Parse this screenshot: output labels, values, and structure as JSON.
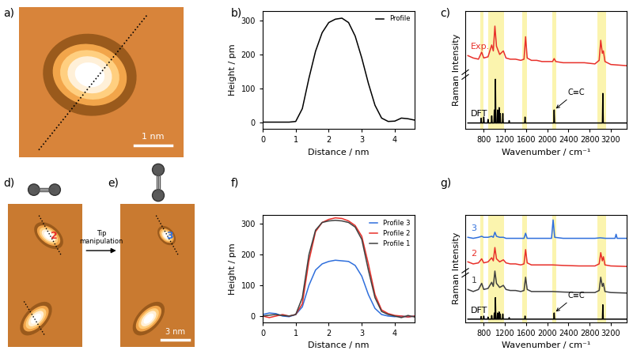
{
  "images": [
    {
      "panel_label": "a)",
      "scale_bar": "1 nm"
    },
    {
      "panel_label": "d)",
      "label": "2",
      "color": "#e8302a"
    },
    {
      "panel_label": "e)",
      "label": "3",
      "color": "#2f6fdc",
      "scale_bar": "3 nm"
    }
  ],
  "arrow_text": "Tip\nmanipulation",
  "chart_data": [
    {
      "type": "line",
      "panel_label": "b)",
      "xlabel": "Distance / nm",
      "ylabel": "Height / pm",
      "xlim": [
        0,
        4.6
      ],
      "xticks": [
        0,
        1,
        2,
        3,
        4
      ],
      "ylim": [
        -20,
        330
      ],
      "yticks": [
        0,
        100,
        200,
        300
      ],
      "legend": "upper right",
      "series": [
        {
          "name": "Profile",
          "color": "#000000",
          "x": [
            0,
            0.2,
            0.4,
            0.6,
            0.8,
            1.0,
            1.2,
            1.4,
            1.6,
            1.8,
            2.0,
            2.2,
            2.4,
            2.6,
            2.8,
            3.0,
            3.2,
            3.4,
            3.6,
            3.8,
            4.0,
            4.2,
            4.4,
            4.6
          ],
          "values": [
            0,
            0,
            0,
            0,
            0,
            2,
            40,
            130,
            210,
            265,
            295,
            305,
            308,
            295,
            255,
            190,
            115,
            50,
            12,
            2,
            3,
            12,
            10,
            6
          ]
        }
      ]
    },
    {
      "type": "line",
      "panel_label": "c)",
      "xlabel": "Wavenumber / cm⁻¹",
      "ylabel": "Raman Intensity",
      "xlim": [
        450,
        3500
      ],
      "xticks": [
        800,
        1200,
        1600,
        2000,
        2400,
        2800,
        3200
      ],
      "ylim": [
        0,
        10
      ],
      "tick_labels": "x",
      "highlight_ranges": [
        [
          730,
          800
        ],
        [
          890,
          1180
        ],
        [
          1530,
          1610
        ],
        [
          2090,
          2170
        ],
        [
          2950,
          3110
        ]
      ],
      "annotations": [
        {
          "text": "C≡C",
          "x": 2130,
          "y": 1.6
        }
      ],
      "series": [
        {
          "name": "Exp.",
          "color": "#e8302a",
          "x": [
            500,
            600,
            700,
            760,
            800,
            880,
            950,
            980,
            1010,
            1040,
            1100,
            1170,
            1220,
            1300,
            1400,
            1500,
            1560,
            1590,
            1620,
            1700,
            1800,
            1900,
            2000,
            2100,
            2130,
            2160,
            2300,
            2500,
            2700,
            2900,
            2980,
            3010,
            3040,
            3060,
            3090,
            3200,
            3350,
            3500
          ],
          "values": [
            6.2,
            6.0,
            5.9,
            6.5,
            6.0,
            6.1,
            7.1,
            6.6,
            8.7,
            7.0,
            6.3,
            6.6,
            6.0,
            5.9,
            5.9,
            5.8,
            5.9,
            7.8,
            6.0,
            5.8,
            5.8,
            5.7,
            5.7,
            5.7,
            5.95,
            5.7,
            5.6,
            5.6,
            5.6,
            5.5,
            5.8,
            7.5,
            6.4,
            6.6,
            5.7,
            5.45,
            5.4,
            5.35
          ]
        },
        {
          "name": "DFT",
          "color": "#000000",
          "x": [
            500,
            742,
            750,
            758,
            792,
            800,
            808,
            872,
            880,
            888,
            942,
            950,
            958,
            992,
            1000,
            1008,
            1012,
            1020,
            1028,
            1052,
            1060,
            1068,
            1082,
            1090,
            1098,
            1102,
            1110,
            1118,
            1152,
            1160,
            1168,
            1272,
            1280,
            1288,
            1572,
            1580,
            1588,
            2122,
            2130,
            2138,
            3042,
            3050,
            3058,
            3500
          ],
          "values": [
            0.5,
            0.5,
            0.9,
            0.5,
            0.5,
            1.0,
            0.5,
            0.5,
            0.8,
            0.5,
            0.5,
            1.1,
            0.5,
            0.5,
            1.6,
            0.5,
            0.5,
            4.2,
            0.5,
            0.5,
            1.6,
            0.5,
            0.5,
            1.8,
            0.5,
            0.5,
            1.3,
            0.5,
            0.5,
            1.3,
            0.5,
            0.5,
            0.7,
            0.5,
            0.5,
            1.0,
            0.5,
            0.5,
            1.6,
            0.5,
            0.5,
            3.0,
            0.5,
            0.5
          ]
        }
      ]
    },
    {
      "type": "line",
      "panel_label": "f)",
      "xlabel": "Distance / nm",
      "ylabel": "Height / pm",
      "xlim": [
        0,
        4.6
      ],
      "xticks": [
        0,
        1,
        2,
        3,
        4
      ],
      "ylim": [
        -20,
        330
      ],
      "yticks": [
        0,
        100,
        200,
        300
      ],
      "legend": "upper right",
      "series": [
        {
          "name": "Profile 3",
          "color": "#2f6fdc",
          "x": [
            0,
            0.2,
            0.4,
            0.6,
            0.8,
            1.0,
            1.2,
            1.4,
            1.6,
            1.8,
            2.0,
            2.2,
            2.4,
            2.6,
            2.8,
            3.0,
            3.2,
            3.4,
            3.6,
            3.8,
            4.0,
            4.2,
            4.4,
            4.6
          ],
          "values": [
            5,
            10,
            8,
            0,
            -2,
            5,
            30,
            100,
            150,
            170,
            178,
            182,
            180,
            178,
            165,
            130,
            70,
            25,
            5,
            0,
            -2,
            0,
            -3,
            0
          ]
        },
        {
          "name": "Profile 2",
          "color": "#e8302a",
          "x": [
            0,
            0.2,
            0.4,
            0.6,
            0.8,
            1.0,
            1.2,
            1.4,
            1.6,
            1.8,
            2.0,
            2.2,
            2.4,
            2.6,
            2.8,
            3.0,
            3.2,
            3.4,
            3.6,
            3.8,
            4.0,
            4.2,
            4.4,
            4.6
          ],
          "values": [
            0,
            -5,
            0,
            5,
            0,
            5,
            40,
            180,
            275,
            305,
            315,
            320,
            318,
            310,
            295,
            260,
            170,
            70,
            20,
            8,
            2,
            0,
            -3,
            0
          ]
        },
        {
          "name": "Profile 1",
          "color": "#404040",
          "x": [
            0,
            0.2,
            0.4,
            0.6,
            0.8,
            1.0,
            1.2,
            1.4,
            1.6,
            1.8,
            2.0,
            2.2,
            2.4,
            2.6,
            2.8,
            3.0,
            3.2,
            3.4,
            3.6,
            3.8,
            4.0,
            4.2,
            4.4,
            4.6
          ],
          "values": [
            0,
            3,
            5,
            2,
            0,
            5,
            60,
            200,
            280,
            305,
            310,
            312,
            310,
            305,
            290,
            250,
            150,
            60,
            15,
            5,
            0,
            -5,
            2,
            -3
          ]
        }
      ]
    },
    {
      "type": "line",
      "panel_label": "g)",
      "xlabel": "Wavenumber / cm⁻¹",
      "ylabel": "Raman Intensity",
      "xlim": [
        450,
        3500
      ],
      "xticks": [
        800,
        1200,
        1600,
        2000,
        2400,
        2800,
        3200
      ],
      "ylim": [
        0,
        10.5
      ],
      "tick_labels": "x",
      "highlight_ranges": [
        [
          730,
          800
        ],
        [
          890,
          1180
        ],
        [
          1530,
          1610
        ],
        [
          2090,
          2170
        ],
        [
          2950,
          3110
        ]
      ],
      "annotations": [
        {
          "text": "C≡C",
          "x": 2130,
          "y": 0.9
        }
      ],
      "series": [
        {
          "name": "3",
          "color": "#2f6fdc",
          "x": [
            500,
            600,
            700,
            760,
            800,
            880,
            950,
            980,
            1010,
            1040,
            1100,
            1170,
            1220,
            1300,
            1400,
            1500,
            1560,
            1590,
            1620,
            1700,
            1900,
            2080,
            2110,
            2140,
            2300,
            2600,
            2900,
            3000,
            3100,
            3280,
            3300,
            3320,
            3500
          ],
          "values": [
            8.3,
            8.2,
            8.3,
            8.4,
            8.3,
            8.3,
            8.4,
            8.3,
            8.8,
            8.4,
            8.3,
            8.3,
            8.2,
            8.2,
            8.2,
            8.2,
            8.2,
            8.7,
            8.2,
            8.2,
            8.2,
            8.2,
            10.0,
            8.3,
            8.2,
            8.2,
            8.2,
            8.25,
            8.2,
            8.2,
            8.6,
            8.2,
            8.2
          ]
        },
        {
          "name": "2",
          "color": "#e8302a",
          "x": [
            500,
            600,
            700,
            760,
            800,
            880,
            950,
            980,
            1010,
            1040,
            1100,
            1170,
            1220,
            1300,
            1400,
            1500,
            1560,
            1590,
            1620,
            1700,
            1900,
            2100,
            2300,
            2600,
            2900,
            2980,
            3010,
            3040,
            3060,
            3090,
            3200,
            3500
          ],
          "values": [
            5.9,
            5.7,
            5.8,
            6.2,
            5.8,
            5.9,
            6.3,
            6.0,
            7.3,
            6.2,
            5.9,
            6.1,
            5.8,
            5.7,
            5.7,
            5.6,
            5.7,
            7.1,
            5.8,
            5.6,
            5.6,
            5.6,
            5.55,
            5.5,
            5.5,
            5.7,
            6.8,
            6.0,
            6.4,
            5.6,
            5.5,
            5.45
          ]
        },
        {
          "name": "1",
          "color": "#404040",
          "x": [
            500,
            600,
            700,
            760,
            800,
            880,
            950,
            980,
            1010,
            1040,
            1100,
            1170,
            1220,
            1300,
            1400,
            1500,
            1560,
            1590,
            1620,
            1700,
            1900,
            2100,
            2300,
            2600,
            2900,
            2980,
            3010,
            3040,
            3060,
            3090,
            3200,
            3500
          ],
          "values": [
            3.2,
            3.0,
            3.2,
            3.8,
            3.2,
            3.3,
            3.9,
            3.5,
            5.0,
            3.8,
            3.4,
            3.6,
            3.2,
            3.1,
            3.1,
            3.0,
            3.1,
            4.4,
            3.2,
            3.0,
            3.0,
            3.0,
            2.95,
            2.9,
            2.9,
            3.1,
            4.4,
            3.5,
            3.8,
            3.0,
            2.9,
            2.85
          ]
        },
        {
          "name": "DFT",
          "color": "#000000",
          "x": [
            500,
            742,
            750,
            758,
            792,
            800,
            808,
            872,
            880,
            888,
            942,
            950,
            958,
            992,
            1000,
            1008,
            1012,
            1020,
            1028,
            1052,
            1060,
            1068,
            1082,
            1090,
            1098,
            1102,
            1110,
            1118,
            1152,
            1160,
            1168,
            1272,
            1280,
            1288,
            1572,
            1580,
            1588,
            2122,
            2130,
            2138,
            3042,
            3050,
            3058,
            3500
          ],
          "values": [
            0.3,
            0.3,
            0.55,
            0.3,
            0.3,
            0.6,
            0.3,
            0.3,
            0.5,
            0.3,
            0.3,
            0.65,
            0.3,
            0.3,
            0.9,
            0.3,
            0.3,
            2.4,
            0.3,
            0.3,
            0.9,
            0.3,
            0.3,
            1.0,
            0.3,
            0.3,
            0.8,
            0.3,
            0.3,
            0.8,
            0.3,
            0.3,
            0.45,
            0.3,
            0.3,
            0.6,
            0.3,
            0.3,
            0.9,
            0.3,
            0.3,
            1.7,
            0.3,
            0.3
          ]
        }
      ]
    }
  ]
}
